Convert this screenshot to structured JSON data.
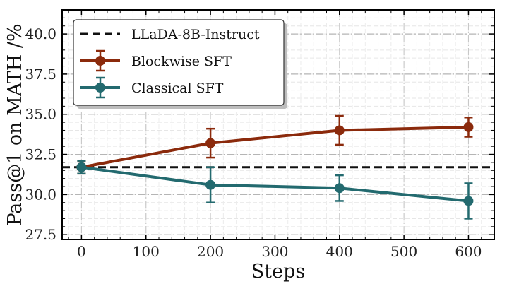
{
  "chart_data": {
    "type": "line",
    "xlabel": "Steps",
    "ylabel": "Pass@1 on MATH /%",
    "xlim": [
      -30,
      640
    ],
    "ylim": [
      27.2,
      41.5
    ],
    "xticks": [
      0,
      100,
      200,
      300,
      400,
      500,
      600
    ],
    "yticks": [
      27.5,
      30.0,
      32.5,
      35.0,
      37.5,
      40.0
    ],
    "ytick_labels": [
      "27.5",
      "30.0",
      "32.5",
      "35.0",
      "37.5",
      "40.0"
    ],
    "grid": true,
    "legend_position": "top-left",
    "baseline": {
      "name": "LLaDA-8B-Instruct",
      "value": 31.7,
      "color": "#111111",
      "style": "dashed"
    },
    "series": [
      {
        "name": "Blockwise SFT",
        "color": "#8B2A0C",
        "x": [
          0,
          200,
          400,
          600
        ],
        "y": [
          31.7,
          33.2,
          34.0,
          34.2
        ],
        "err": [
          0.4,
          0.9,
          0.9,
          0.6
        ]
      },
      {
        "name": "Classical SFT",
        "color": "#236A6F",
        "x": [
          0,
          200,
          400,
          600
        ],
        "y": [
          31.7,
          30.6,
          30.4,
          29.6
        ],
        "err": [
          0.4,
          1.1,
          0.8,
          1.1
        ]
      }
    ]
  }
}
